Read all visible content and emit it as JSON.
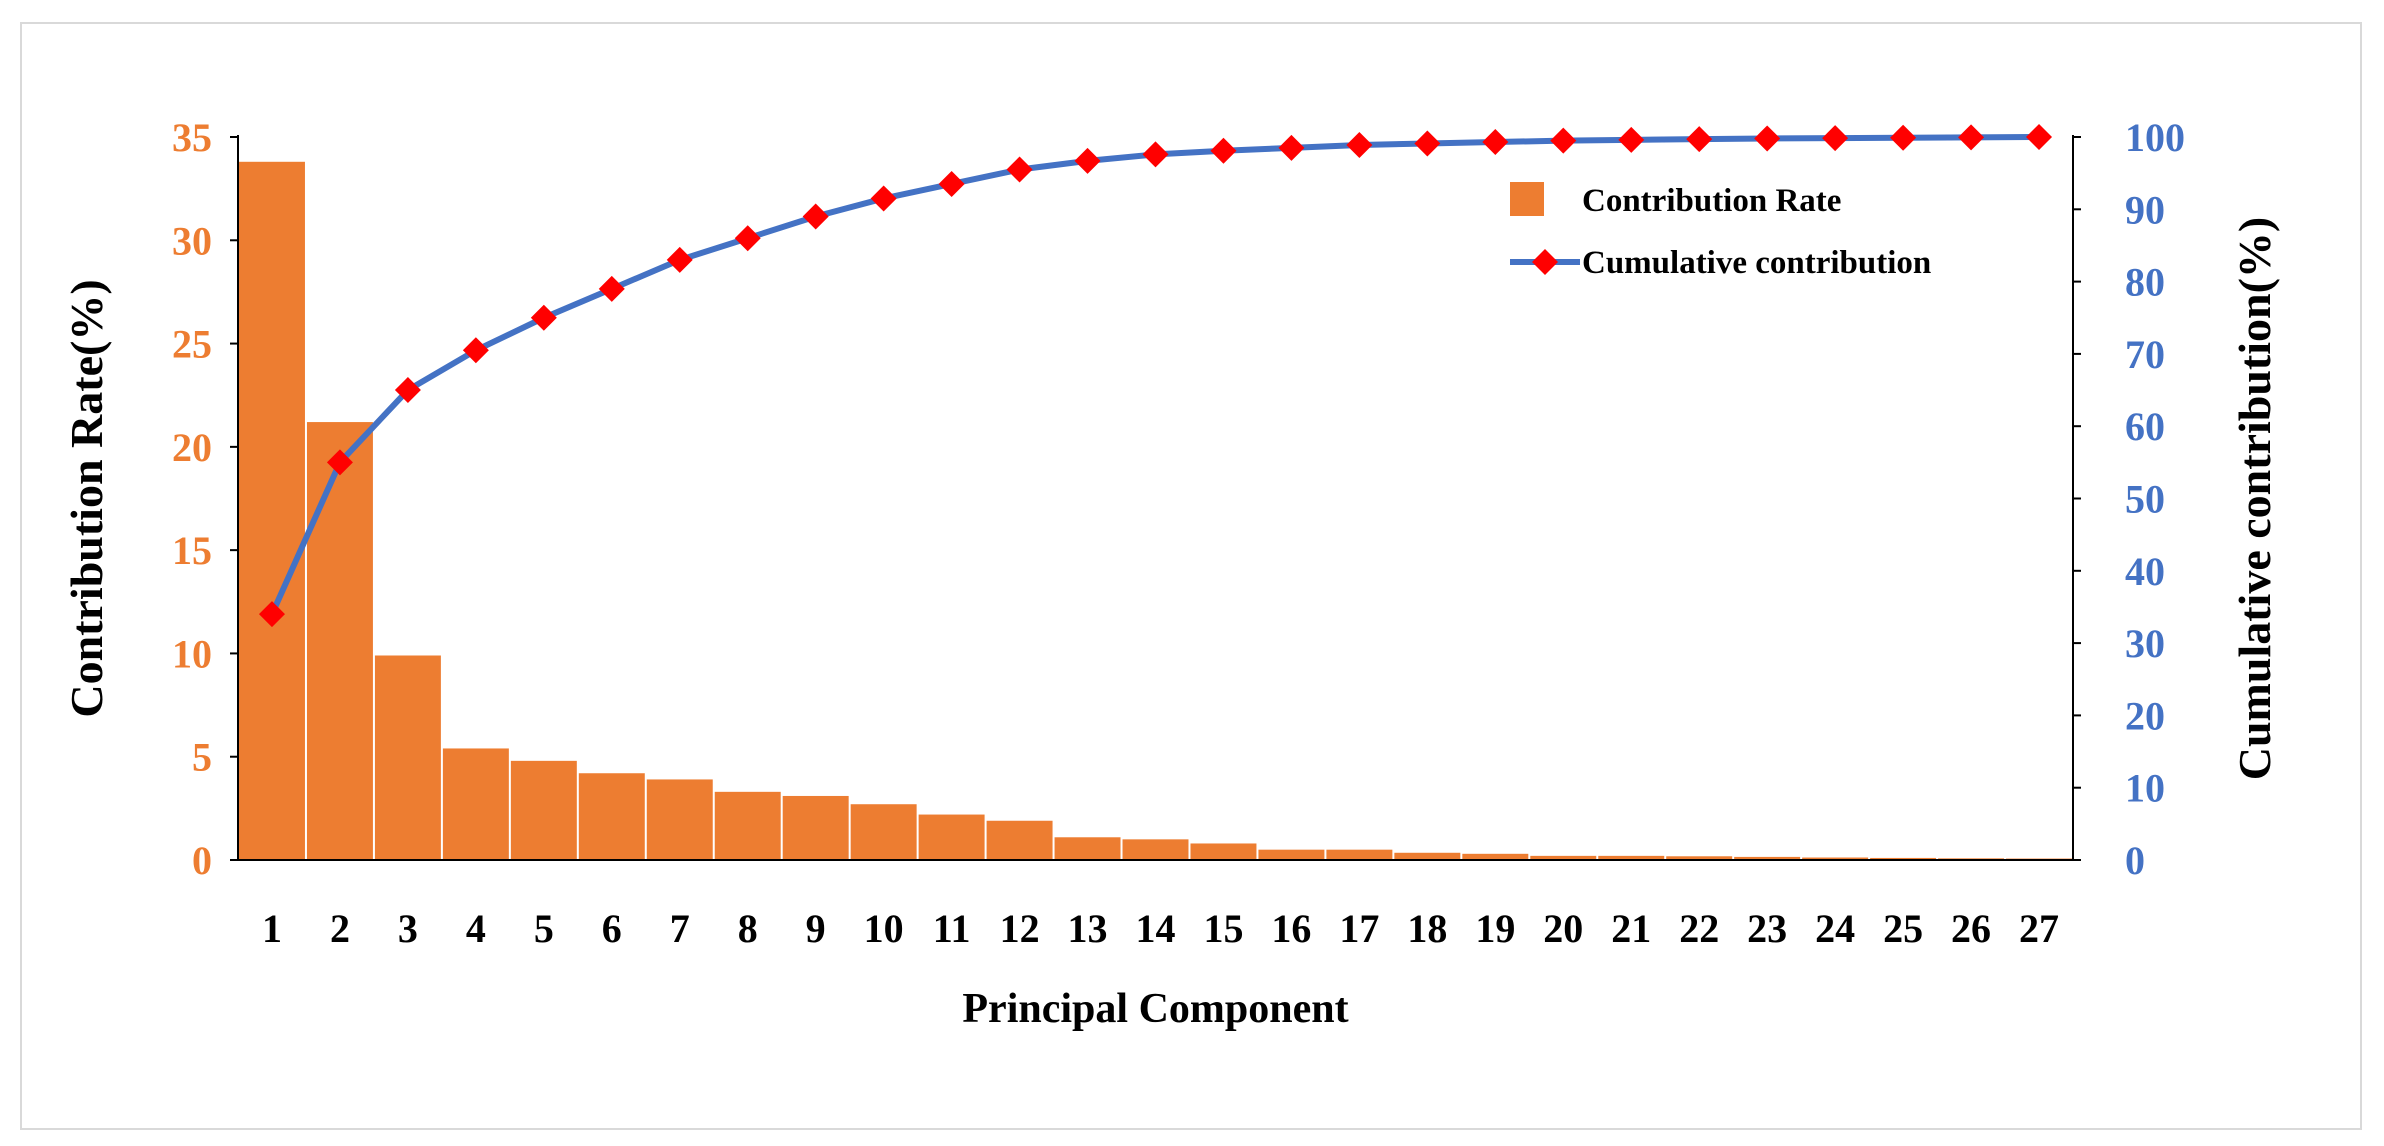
{
  "chart_data": {
    "type": "bar+line",
    "title": "",
    "xlabel": "Principal Component",
    "ylabel_left": "Contribution Rate(%)",
    "ylabel_right": "Cumulative contribution(%)",
    "categories": [
      "1",
      "2",
      "3",
      "4",
      "5",
      "6",
      "7",
      "8",
      "9",
      "10",
      "11",
      "12",
      "13",
      "14",
      "15",
      "16",
      "17",
      "18",
      "19",
      "20",
      "21",
      "22",
      "23",
      "24",
      "25",
      "26",
      "27"
    ],
    "ylim_left": [
      0,
      35
    ],
    "yticks_left": [
      "0",
      "5",
      "10",
      "15",
      "20",
      "25",
      "30",
      "35"
    ],
    "ylim_right": [
      0,
      100
    ],
    "yticks_right": [
      "0",
      "10",
      "20",
      "30",
      "40",
      "50",
      "60",
      "70",
      "80",
      "90",
      "100"
    ],
    "grid": false,
    "legend_position": "top-right",
    "series": [
      {
        "name": "Contribution Rate",
        "kind": "bar",
        "axis": "left",
        "values": [
          33.8,
          21.2,
          9.9,
          5.4,
          4.8,
          4.2,
          3.9,
          3.3,
          3.1,
          2.7,
          2.2,
          1.9,
          1.1,
          1.0,
          0.8,
          0.5,
          0.5,
          0.35,
          0.3,
          0.2,
          0.2,
          0.18,
          0.15,
          0.12,
          0.1,
          0.08,
          0.07
        ]
      },
      {
        "name": "Cumulative contribution",
        "kind": "line",
        "axis": "right",
        "values": [
          34,
          55,
          65,
          70.5,
          75,
          79,
          83,
          86,
          89,
          91.5,
          93.5,
          95.5,
          96.7,
          97.6,
          98.1,
          98.5,
          98.9,
          99.1,
          99.3,
          99.5,
          99.6,
          99.7,
          99.8,
          99.85,
          99.9,
          99.95,
          100
        ]
      }
    ],
    "colors": {
      "bar": "#ED7D31",
      "line": "#4472C4",
      "marker": "#FF0000",
      "left_axis_text": "#ED7D31",
      "right_axis_text": "#4472C4",
      "label_text": "#000000"
    }
  }
}
